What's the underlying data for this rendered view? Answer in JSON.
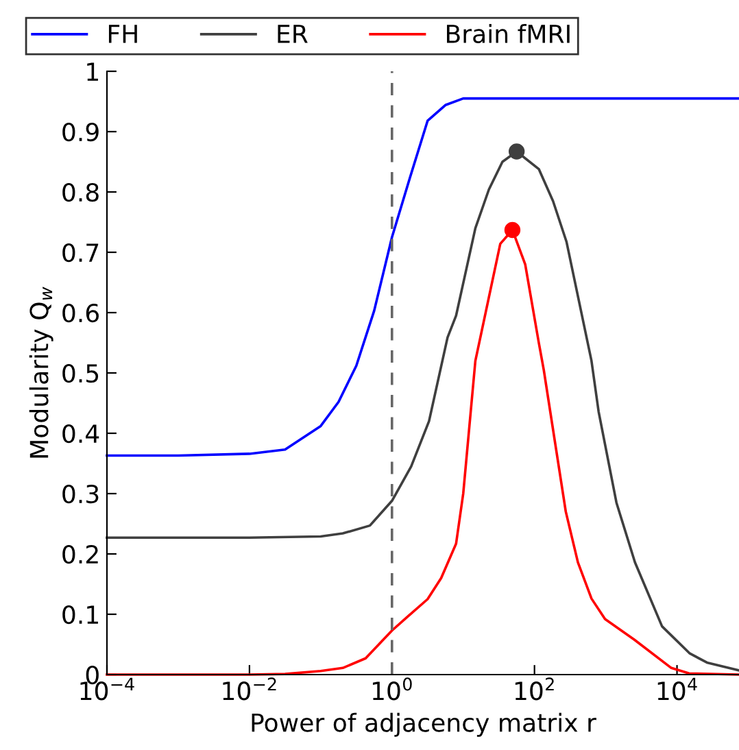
{
  "chart_data": {
    "type": "line",
    "xlabel": "Power of adjacency matrix r",
    "ylabel": "Modularity Q$_{w}$",
    "log": "x",
    "xlim": [
      0.0001,
      74131
    ],
    "ylim": [
      0,
      1
    ],
    "xticks": [
      {
        "value": 0.0001,
        "label": "10$^{−4}$"
      },
      {
        "value": 0.01,
        "label": "10$^{−2}$"
      },
      {
        "value": 1,
        "label": "10$^{0}$"
      },
      {
        "value": 100,
        "label": "10$^{2}$"
      },
      {
        "value": 10000,
        "label": "10$^{4}$"
      }
    ],
    "yticks": [
      0,
      0.1,
      0.2,
      0.3,
      0.4,
      0.5,
      0.6,
      0.7,
      0.8,
      0.9,
      1
    ],
    "legend": "top",
    "grid": false,
    "ref_lines": [
      {
        "axis": "x",
        "value": 1,
        "color": "#666666",
        "line_style": "dashed"
      }
    ],
    "series": [
      {
        "name": "FH",
        "color": "#0000ff",
        "x": [
          0.0001,
          0.001,
          0.01,
          0.0316,
          0.1,
          0.178,
          0.316,
          0.562,
          1,
          1.78,
          3.16,
          5.62,
          10,
          74131
        ],
        "values": [
          0.363,
          0.363,
          0.366,
          0.373,
          0.412,
          0.452,
          0.512,
          0.603,
          0.725,
          0.823,
          0.918,
          0.944,
          0.955,
          0.955
        ]
      },
      {
        "name": "ER",
        "color": "#3f3f3f",
        "x": [
          0.0001,
          0.01,
          0.1,
          0.204,
          0.49,
          1,
          1.86,
          3.31,
          6.03,
          7.94,
          14.8,
          22.9,
          35.5,
          56.2,
          115,
          182,
          282,
          631,
          794,
          1413,
          2570,
          6166,
          15136,
          26303,
          74131
        ],
        "values": [
          0.227,
          0.227,
          0.229,
          0.234,
          0.247,
          0.288,
          0.345,
          0.42,
          0.559,
          0.595,
          0.74,
          0.804,
          0.85,
          0.867,
          0.838,
          0.785,
          0.717,
          0.52,
          0.436,
          0.285,
          0.186,
          0.08,
          0.035,
          0.02,
          0.007
        ]
      },
      {
        "name": "Brain fMRI",
        "color": "#ff0000",
        "x": [
          0.0001,
          0.01,
          0.0316,
          0.1,
          0.204,
          0.427,
          1,
          1.62,
          3.16,
          4.9,
          7.94,
          10,
          14.8,
          33.1,
          49,
          74.1,
          115,
          135,
          275,
          407,
          631,
          977,
          2512,
          8318,
          14791,
          74131
        ],
        "values": [
          0,
          0,
          0.001,
          0.006,
          0.011,
          0.027,
          0.073,
          0.095,
          0.125,
          0.16,
          0.217,
          0.3,
          0.52,
          0.714,
          0.737,
          0.68,
          0.55,
          0.505,
          0.27,
          0.186,
          0.126,
          0.092,
          0.058,
          0.011,
          0.002,
          0
        ]
      },
      {
        "type": "scatter",
        "marker": "circle",
        "color": "#3f3f3f",
        "x": [
          56.2
        ],
        "values": [
          0.867
        ]
      },
      {
        "type": "scatter",
        "marker": "circle",
        "color": "#ff0000",
        "x": [
          49
        ],
        "values": [
          0.737
        ]
      }
    ]
  }
}
